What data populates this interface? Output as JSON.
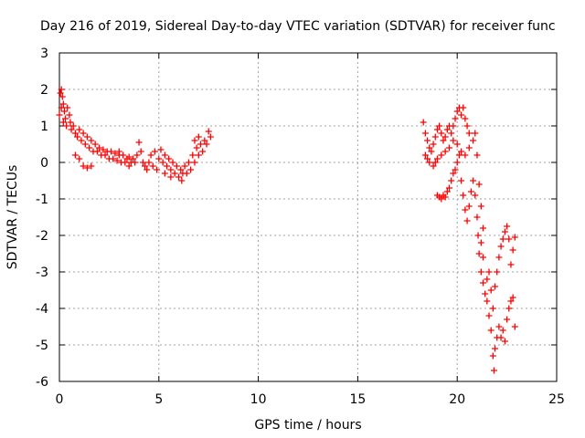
{
  "chart_data": {
    "type": "scatter",
    "title": "Day 216 of 2019, Sidereal Day-to-day VTEC variation (SDTVAR) for receiver func",
    "xlabel": "GPS time / hours",
    "ylabel": "SDTVAR / TECUs",
    "xlim": [
      0,
      25
    ],
    "ylim": [
      -6,
      3
    ],
    "x_ticks": [
      "0",
      "5",
      "10",
      "15",
      "20",
      "25"
    ],
    "y_ticks": [
      "3",
      "2",
      "1",
      "0",
      "-1",
      "-2",
      "-3",
      "-4",
      "-5",
      "-6"
    ],
    "grid": true,
    "marker": "+",
    "marker_color": "#ff0000",
    "series": [
      {
        "values": [
          [
            0.0,
            1.3
          ],
          [
            0.05,
            1.9
          ],
          [
            0.1,
            2.0
          ],
          [
            0.15,
            1.8
          ],
          [
            0.2,
            1.6
          ],
          [
            0.25,
            1.4
          ],
          [
            0.3,
            1.2
          ],
          [
            0.35,
            1.0
          ],
          [
            0.1,
            1.5
          ],
          [
            0.2,
            1.1
          ],
          [
            0.4,
            1.5
          ],
          [
            0.5,
            1.3
          ],
          [
            0.55,
            1.1
          ],
          [
            0.6,
            0.9
          ],
          [
            0.7,
            1.0
          ],
          [
            0.8,
            0.8
          ],
          [
            0.9,
            0.7
          ],
          [
            1.0,
            0.9
          ],
          [
            1.1,
            0.6
          ],
          [
            1.2,
            0.8
          ],
          [
            1.3,
            0.5
          ],
          [
            1.4,
            0.7
          ],
          [
            1.5,
            0.4
          ],
          [
            1.6,
            0.6
          ],
          [
            1.7,
            0.3
          ],
          [
            1.8,
            0.5
          ],
          [
            1.9,
            0.3
          ],
          [
            2.0,
            0.4
          ],
          [
            2.1,
            0.2
          ],
          [
            2.2,
            0.35
          ],
          [
            2.3,
            0.2
          ],
          [
            2.4,
            0.3
          ],
          [
            2.5,
            0.1
          ],
          [
            2.6,
            0.3
          ],
          [
            2.7,
            0.1
          ],
          [
            2.8,
            0.25
          ],
          [
            2.9,
            0.05
          ],
          [
            3.0,
            0.2
          ],
          [
            3.1,
            0.0
          ],
          [
            3.2,
            0.2
          ],
          [
            3.3,
            0.0
          ],
          [
            3.4,
            0.1
          ],
          [
            3.5,
            -0.1
          ],
          [
            3.6,
            0.0
          ],
          [
            3.7,
            0.1
          ],
          [
            3.8,
            0.0
          ],
          [
            3.9,
            0.2
          ],
          [
            4.0,
            0.55
          ],
          [
            4.1,
            0.3
          ],
          [
            4.3,
            -0.1
          ],
          [
            4.5,
            0.0
          ],
          [
            4.6,
            0.2
          ],
          [
            4.8,
            0.3
          ],
          [
            5.0,
            0.1
          ],
          [
            5.1,
            0.35
          ],
          [
            5.2,
            0.0
          ],
          [
            5.3,
            0.2
          ],
          [
            5.4,
            -0.1
          ],
          [
            5.5,
            0.1
          ],
          [
            5.6,
            -0.2
          ],
          [
            5.7,
            0.0
          ],
          [
            5.8,
            -0.3
          ],
          [
            5.9,
            -0.1
          ],
          [
            6.0,
            -0.4
          ],
          [
            6.1,
            -0.2
          ],
          [
            6.15,
            -0.5
          ],
          [
            6.2,
            -0.3
          ],
          [
            6.3,
            -0.1
          ],
          [
            6.4,
            -0.3
          ],
          [
            6.5,
            0.0
          ],
          [
            6.6,
            -0.2
          ],
          [
            6.7,
            0.2
          ],
          [
            6.8,
            0.0
          ],
          [
            6.9,
            0.4
          ],
          [
            7.0,
            0.2
          ],
          [
            7.1,
            0.5
          ],
          [
            7.2,
            0.3
          ],
          [
            7.3,
            0.6
          ],
          [
            7.4,
            0.5
          ],
          [
            7.5,
            0.85
          ],
          [
            7.6,
            0.7
          ],
          [
            0.8,
            0.2
          ],
          [
            1.0,
            0.1
          ],
          [
            1.2,
            -0.1
          ],
          [
            1.4,
            -0.15
          ],
          [
            1.6,
            -0.1
          ],
          [
            4.2,
            0.0
          ],
          [
            4.4,
            -0.2
          ],
          [
            4.7,
            -0.1
          ],
          [
            4.9,
            -0.2
          ],
          [
            5.3,
            -0.3
          ],
          [
            5.6,
            -0.4
          ],
          [
            3.0,
            0.3
          ],
          [
            3.5,
            0.15
          ],
          [
            6.8,
            0.6
          ],
          [
            7.0,
            0.7
          ]
        ]
      },
      {
        "values": [
          [
            18.3,
            1.1
          ],
          [
            18.4,
            0.8
          ],
          [
            18.5,
            0.6
          ],
          [
            18.6,
            0.4
          ],
          [
            18.7,
            0.3
          ],
          [
            18.8,
            0.5
          ],
          [
            18.9,
            0.7
          ],
          [
            19.0,
            0.9
          ],
          [
            19.1,
            1.0
          ],
          [
            19.2,
            0.8
          ],
          [
            19.3,
            0.6
          ],
          [
            19.4,
            0.7
          ],
          [
            19.5,
            0.9
          ],
          [
            19.6,
            1.0
          ],
          [
            19.7,
            0.8
          ],
          [
            19.8,
            1.0
          ],
          [
            19.9,
            1.2
          ],
          [
            20.0,
            1.4
          ],
          [
            20.1,
            1.5
          ],
          [
            20.2,
            1.3
          ],
          [
            20.3,
            1.5
          ],
          [
            20.4,
            1.2
          ],
          [
            20.5,
            1.0
          ],
          [
            20.6,
            0.8
          ],
          [
            18.4,
            0.2
          ],
          [
            18.5,
            0.1
          ],
          [
            18.6,
            0.0
          ],
          [
            18.8,
            -0.1
          ],
          [
            18.9,
            0.0
          ],
          [
            19.0,
            0.1
          ],
          [
            19.2,
            0.2
          ],
          [
            19.4,
            0.3
          ],
          [
            19.6,
            0.4
          ],
          [
            19.8,
            0.6
          ],
          [
            20.0,
            0.5
          ],
          [
            20.2,
            0.3
          ],
          [
            20.4,
            0.2
          ],
          [
            20.6,
            0.4
          ],
          [
            20.8,
            0.6
          ],
          [
            20.9,
            0.8
          ],
          [
            19.0,
            -0.9
          ],
          [
            19.1,
            -0.95
          ],
          [
            19.2,
            -1.0
          ],
          [
            19.3,
            -0.9
          ],
          [
            19.4,
            -0.95
          ],
          [
            19.5,
            -0.8
          ],
          [
            19.6,
            -0.7
          ],
          [
            19.7,
            -0.5
          ],
          [
            19.8,
            -0.3
          ],
          [
            19.9,
            -0.2
          ],
          [
            20.0,
            0.0
          ],
          [
            20.1,
            0.2
          ],
          [
            20.2,
            -0.5
          ],
          [
            20.3,
            -0.9
          ],
          [
            20.4,
            -1.3
          ],
          [
            20.5,
            -1.6
          ],
          [
            20.6,
            -1.2
          ],
          [
            20.7,
            -0.8
          ],
          [
            20.8,
            -0.5
          ],
          [
            20.9,
            -0.9
          ],
          [
            21.0,
            -1.5
          ],
          [
            21.05,
            -2.0
          ],
          [
            21.1,
            -2.5
          ],
          [
            21.2,
            -3.0
          ],
          [
            21.3,
            -3.3
          ],
          [
            21.4,
            -3.6
          ],
          [
            21.5,
            -3.8
          ],
          [
            21.6,
            -4.2
          ],
          [
            21.7,
            -4.6
          ],
          [
            21.8,
            -5.3
          ],
          [
            21.85,
            -5.7
          ],
          [
            21.9,
            -5.1
          ],
          [
            22.0,
            -4.8
          ],
          [
            22.1,
            -4.5
          ],
          [
            22.2,
            -4.8
          ],
          [
            22.3,
            -4.6
          ],
          [
            22.4,
            -4.9
          ],
          [
            22.5,
            -4.3
          ],
          [
            22.6,
            -4.0
          ],
          [
            22.7,
            -3.8
          ],
          [
            22.8,
            -3.7
          ],
          [
            22.9,
            -4.5
          ],
          [
            21.2,
            -2.2
          ],
          [
            21.3,
            -2.6
          ],
          [
            21.5,
            -3.2
          ],
          [
            21.7,
            -3.5
          ],
          [
            21.9,
            -3.4
          ],
          [
            22.0,
            -3.0
          ],
          [
            22.1,
            -2.6
          ],
          [
            22.2,
            -2.3
          ],
          [
            22.3,
            -2.1
          ],
          [
            22.4,
            -1.9
          ],
          [
            22.5,
            -1.75
          ],
          [
            22.6,
            -2.1
          ],
          [
            22.7,
            -2.8
          ],
          [
            22.8,
            -2.4
          ],
          [
            22.9,
            -2.05
          ],
          [
            21.0,
            0.2
          ],
          [
            21.1,
            -0.6
          ],
          [
            21.2,
            -1.2
          ],
          [
            21.3,
            -1.8
          ],
          [
            21.6,
            -3.0
          ],
          [
            21.8,
            -4.0
          ]
        ]
      }
    ]
  }
}
